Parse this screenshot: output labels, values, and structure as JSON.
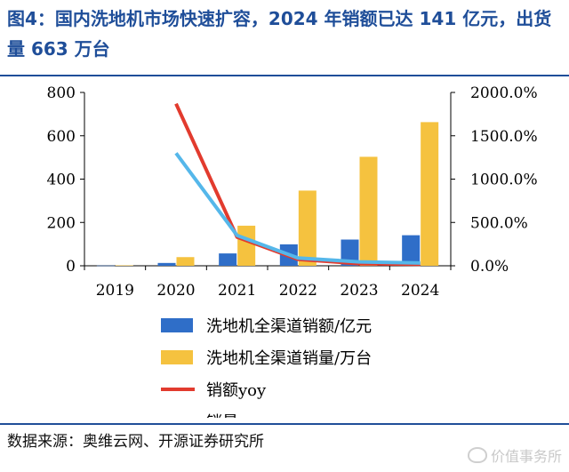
{
  "title": "图4：国内洗地机市场快速扩容，2024 年销额已达 141 亿元，出货量 663 万台",
  "source": "数据来源：奥维云网、开源证券研究所",
  "watermark": "价值事务所",
  "chart_data": {
    "type": "bar",
    "categories": [
      "2019",
      "2020",
      "2021",
      "2022",
      "2023",
      "2024"
    ],
    "ylim": [
      0,
      800
    ],
    "y_ticks": [
      "0",
      "200",
      "400",
      "600",
      "800"
    ],
    "y2lim": [
      0,
      2000
    ],
    "y2_ticks": [
      "0.0%",
      "500.0%",
      "1000.0%",
      "1500.0%",
      "2000.0%"
    ],
    "grid": false,
    "legend_position": "bottom",
    "series": [
      {
        "name": "洗地机全渠道销额/亿元",
        "kind": "bar",
        "axis": "left",
        "color": "#2f6ec8",
        "values": [
          1,
          13,
          57,
          99,
          121,
          141
        ]
      },
      {
        "name": "洗地机全渠道销量/万台",
        "kind": "bar",
        "axis": "left",
        "color": "#f5c23f",
        "values": [
          2,
          40,
          185,
          347,
          503,
          663
        ]
      },
      {
        "name": "销额yoy",
        "kind": "line",
        "axis": "right",
        "color": "#e23b2e",
        "values": [
          null,
          1870,
          330,
          75,
          25,
          17
        ]
      },
      {
        "name": "销量yoy",
        "kind": "line",
        "axis": "right",
        "color": "#55b7ea",
        "values": [
          null,
          1300,
          350,
          90,
          45,
          32
        ]
      }
    ]
  }
}
